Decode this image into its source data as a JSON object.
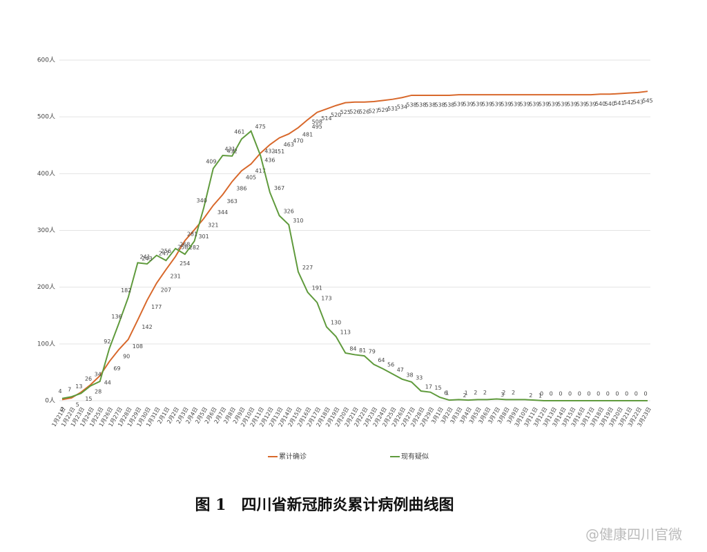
{
  "chart_data": {
    "type": "line",
    "title": "图 1　四川省新冠肺炎累计病例曲线图",
    "annotations": [
      "@健康四川官微"
    ],
    "categories": [
      "1月21日",
      "1月22日",
      "1月23日",
      "1月24日",
      "1月25日",
      "1月26日",
      "1月27日",
      "1月28日",
      "1月29日",
      "1月30日",
      "1月31日",
      "2月1日",
      "2月2日",
      "2月3日",
      "2月4日",
      "2月5日",
      "2月6日",
      "2月7日",
      "2月8日",
      "2月9日",
      "2月10日",
      "2月11日",
      "2月12日",
      "2月13日",
      "2月14日",
      "2月15日",
      "2月16日",
      "2月17日",
      "2月18日",
      "2月19日",
      "2月20日",
      "2月21日",
      "2月22日",
      "2月23日",
      "2月24日",
      "2月25日",
      "2月26日",
      "2月27日",
      "2月28日",
      "2月29日",
      "3月1日",
      "3月2日",
      "3月3日",
      "3月4日",
      "3月5日",
      "3月6日",
      "3月7日",
      "3月8日",
      "3月9日",
      "3月10日",
      "3月11日",
      "3月12日",
      "3月13日",
      "3月14日",
      "3月15日",
      "3月16日",
      "3月17日",
      "3月18日",
      "3月19日",
      "3月20日",
      "3月21日",
      "3月22日",
      "3月23日"
    ],
    "series": [
      {
        "name": "累计确诊",
        "color": "#d8682b",
        "values": [
          2,
          5,
          15,
          28,
          44,
          69,
          90,
          108,
          142,
          177,
          207,
          231,
          254,
          282,
          301,
          321,
          344,
          363,
          386,
          405,
          417,
          436,
          451,
          463,
          470,
          481,
          495,
          508,
          514,
          520,
          525,
          526,
          526,
          527,
          529,
          531,
          534,
          538,
          538,
          538,
          538,
          538,
          539,
          539,
          539,
          539,
          539,
          539,
          539,
          539,
          539,
          539,
          539,
          539,
          539,
          539,
          539,
          540,
          540,
          541,
          542,
          543,
          545
        ]
      },
      {
        "name": "现有疑似",
        "color": "#5f9a3c",
        "values": [
          4,
          7,
          13,
          26,
          34,
          92,
          136,
          182,
          243,
          241,
          256,
          247,
          268,
          258,
          281,
          340,
          409,
          432,
          431,
          461,
          475,
          432,
          367,
          326,
          310,
          227,
          191,
          173,
          130,
          113,
          84,
          81,
          79,
          64,
          56,
          47,
          38,
          33,
          17,
          15,
          6,
          1,
          2,
          1,
          2,
          2,
          3,
          2,
          2,
          2,
          1,
          0,
          0,
          0,
          0,
          0,
          0,
          0,
          0,
          0,
          0,
          0,
          0
        ]
      }
    ],
    "ylim": [
      0,
      600
    ],
    "yticks": [
      {
        "value": 0,
        "label": "0人"
      },
      {
        "value": 100,
        "label": "100人"
      },
      {
        "value": 200,
        "label": "200人"
      },
      {
        "value": 300,
        "label": "300人"
      },
      {
        "value": 400,
        "label": "400人"
      },
      {
        "value": 500,
        "label": "500人"
      },
      {
        "value": 600,
        "label": "600人"
      }
    ],
    "grid": true,
    "legend": "bottom"
  }
}
